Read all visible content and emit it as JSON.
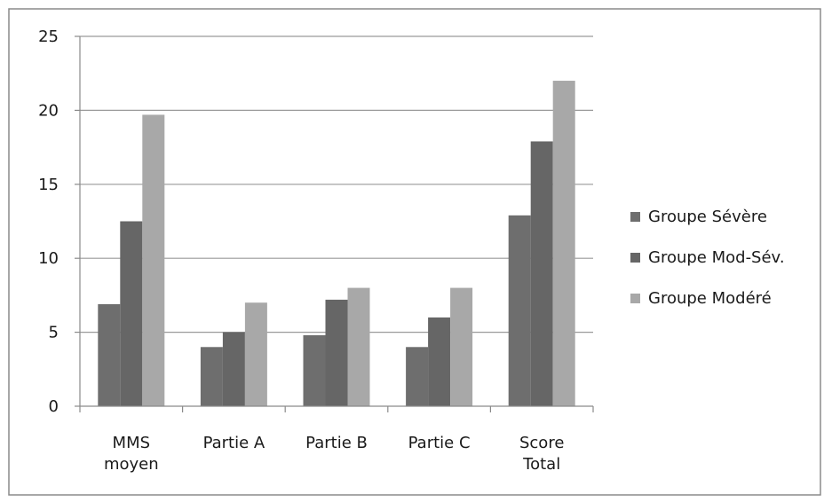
{
  "chart_data": {
    "type": "bar",
    "categories": [
      [
        "MMS",
        "moyen"
      ],
      [
        "Partie A"
      ],
      [
        "Partie B"
      ],
      [
        "Partie C"
      ],
      [
        "Score",
        "Total"
      ]
    ],
    "series": [
      {
        "name": "Groupe Sévère",
        "color": "#6e6e6e",
        "values": [
          6.9,
          4.0,
          4.8,
          4.0,
          12.9
        ]
      },
      {
        "name": "Groupe Mod-Sév.",
        "color": "#666666",
        "values": [
          12.5,
          5.0,
          7.2,
          6.0,
          17.9
        ]
      },
      {
        "name": "Groupe Modéré",
        "color": "#a8a8a8",
        "values": [
          19.7,
          7.0,
          8.0,
          8.0,
          22.0
        ]
      }
    ],
    "ylim": [
      0,
      25
    ],
    "yticks": [
      0,
      5,
      10,
      15,
      20,
      25
    ],
    "grid": true,
    "legend_position": "right"
  }
}
